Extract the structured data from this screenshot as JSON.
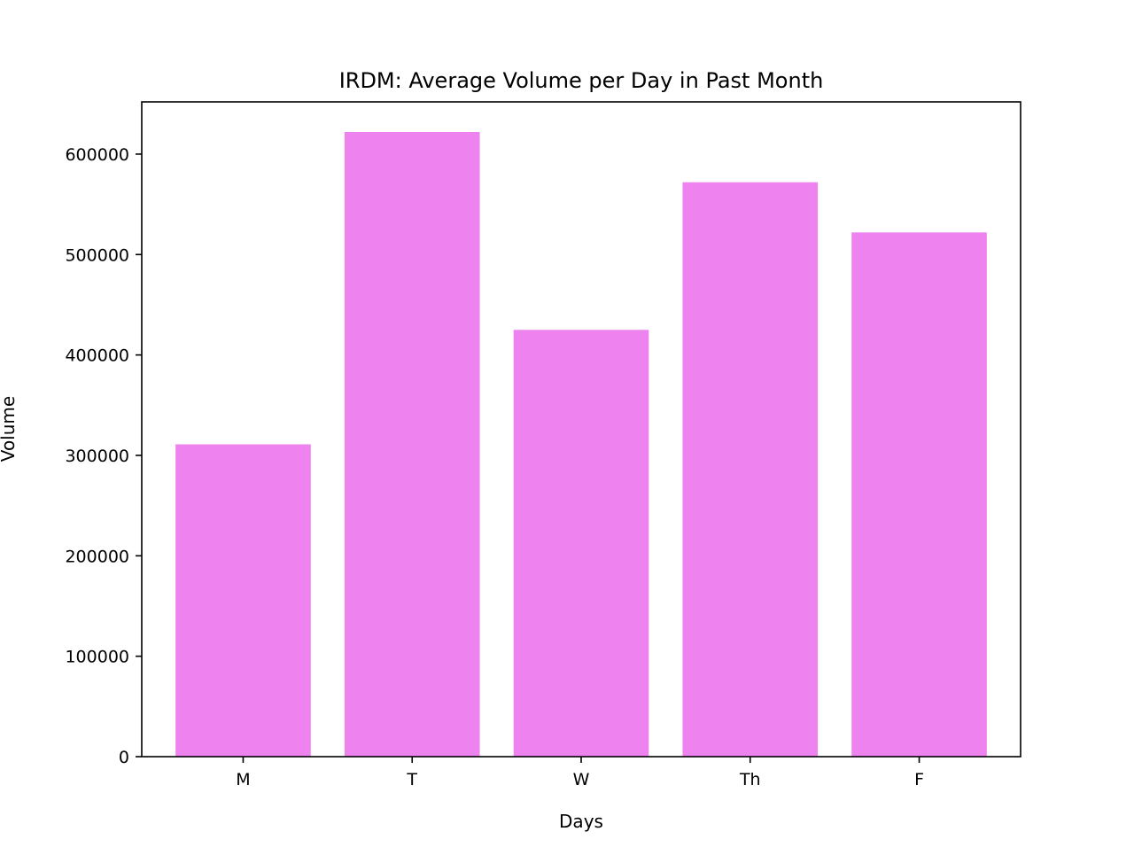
{
  "chart_data": {
    "type": "bar",
    "title": "IRDM: Average Volume per Day in Past Month",
    "xlabel": "Days",
    "ylabel": "Volume",
    "categories": [
      "M",
      "T",
      "W",
      "Th",
      "F"
    ],
    "values": [
      311000,
      622000,
      425000,
      572000,
      522000
    ],
    "ylim": [
      0,
      652000
    ],
    "yticks": [
      0,
      100000,
      200000,
      300000,
      400000,
      500000,
      600000
    ],
    "ytick_labels": [
      "0",
      "100000",
      "200000",
      "300000",
      "400000",
      "500000",
      "600000"
    ],
    "bar_color": "#ee82ee",
    "grid": false,
    "legend": "none"
  }
}
